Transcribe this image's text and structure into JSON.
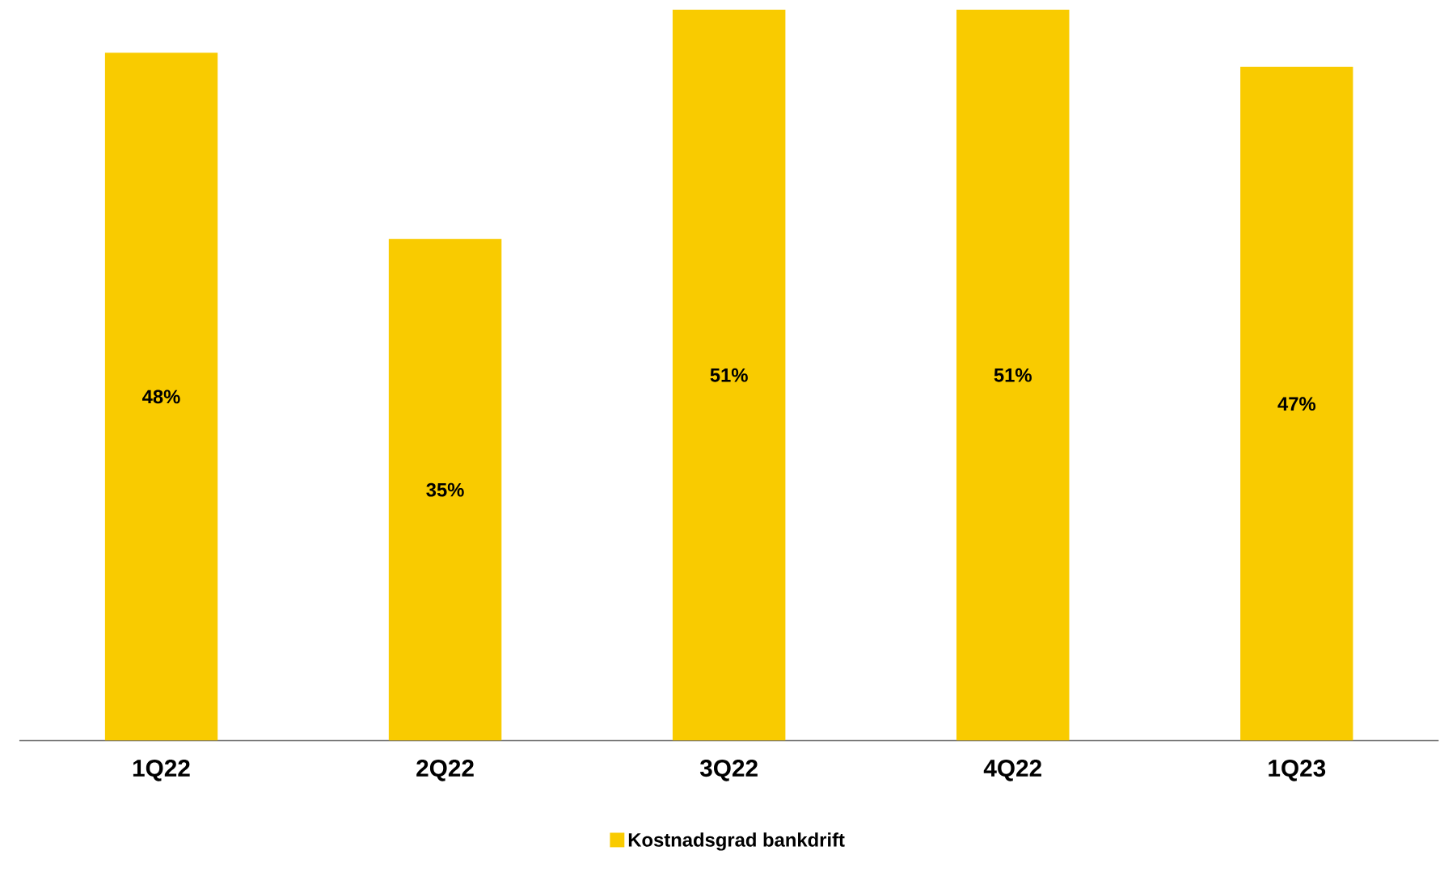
{
  "chart_data": {
    "type": "bar",
    "categories": [
      "1Q22",
      "2Q22",
      "3Q22",
      "4Q22",
      "1Q23"
    ],
    "series": [
      {
        "name": "Kostnadsgrad bankdrift",
        "color": "#f9cb00",
        "values": [
          48,
          35,
          51,
          51,
          47
        ],
        "value_labels": [
          "48%",
          "35%",
          "51%",
          "51%",
          "47%"
        ]
      }
    ],
    "legend": "bottom"
  }
}
